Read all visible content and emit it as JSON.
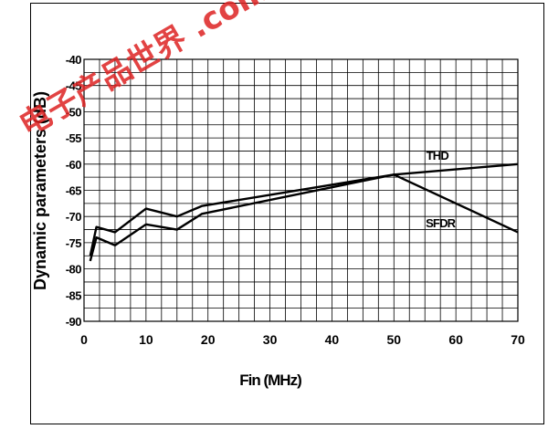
{
  "watermark": {
    "text": "电子产品世界 .com.cn",
    "color": "#dd2222"
  },
  "chart_data": {
    "type": "line",
    "title": "",
    "xlabel": "Fin (MHz)",
    "ylabel": "Dynamic parameters (dB)",
    "xlim": [
      0,
      70
    ],
    "ylim": [
      -90,
      -40
    ],
    "xticks": [
      0,
      10,
      20,
      30,
      40,
      50,
      60,
      70
    ],
    "yticks": [
      -90,
      -85,
      -80,
      -75,
      -70,
      -65,
      -60,
      -55,
      -50,
      -45,
      -40
    ],
    "grid": true,
    "line_color": "#000000",
    "series": [
      {
        "name": "THD",
        "x": [
          1,
          2,
          5,
          10,
          15,
          19,
          50,
          70
        ],
        "y": [
          -77.5,
          -72,
          -73,
          -68.5,
          -70,
          -68,
          -62,
          -60
        ]
      },
      {
        "name": "SFDR",
        "x": [
          1,
          2,
          5,
          10,
          15,
          19,
          50,
          70
        ],
        "y": [
          -78.5,
          -74,
          -75.5,
          -71.5,
          -72.5,
          -69.5,
          -62,
          -73
        ]
      }
    ]
  }
}
